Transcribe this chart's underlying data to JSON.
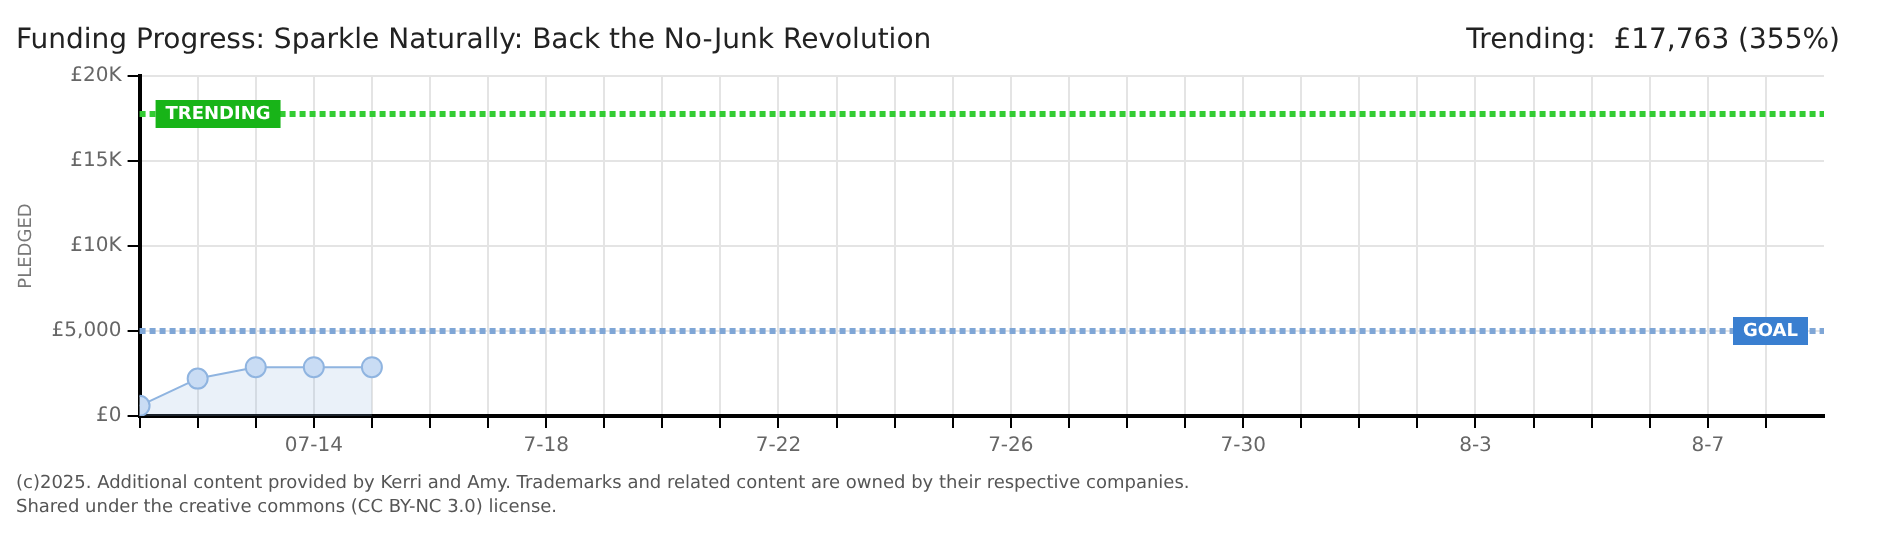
{
  "chart_data": {
    "type": "area",
    "title": "Funding Progress: Sparkle Naturally: Back the No-Junk Revolution",
    "subtitle": "Trending:  £17,763 (355%)",
    "ylabel": "PLEDGED",
    "x": [
      "--07-11",
      "--07-12",
      "--07-13",
      "--07-14",
      "--07-15"
    ],
    "series": [
      {
        "color": "#8fb4e0",
        "values": [
          600,
          2200,
          2870,
          2870,
          2870
        ]
      }
    ],
    "xlim": [
      "--07-11",
      "--08-09"
    ],
    "xticks": [
      {
        "value": "--07-11",
        "label": null
      },
      {
        "value": "--07-12",
        "label": null
      },
      {
        "value": "--07-13",
        "label": null
      },
      {
        "value": "--07-14",
        "label": "07-14"
      },
      {
        "value": "--07-15",
        "label": null
      },
      {
        "value": "--07-16",
        "label": null
      },
      {
        "value": "--07-17",
        "label": null
      },
      {
        "value": "--07-18",
        "label": "7-18"
      },
      {
        "value": "--07-19",
        "label": null
      },
      {
        "value": "--07-20",
        "label": null
      },
      {
        "value": "--07-21",
        "label": null
      },
      {
        "value": "--07-22",
        "label": "7-22"
      },
      {
        "value": "--07-23",
        "label": null
      },
      {
        "value": "--07-24",
        "label": null
      },
      {
        "value": "--07-25",
        "label": null
      },
      {
        "value": "--07-26",
        "label": "7-26"
      },
      {
        "value": "--07-27",
        "label": null
      },
      {
        "value": "--07-28",
        "label": null
      },
      {
        "value": "--07-29",
        "label": null
      },
      {
        "value": "--07-30",
        "label": "7-30"
      },
      {
        "value": "--07-31",
        "label": null
      },
      {
        "value": "--08-01",
        "label": null
      },
      {
        "value": "--08-02",
        "label": null
      },
      {
        "value": "--08-03",
        "label": "8-3"
      },
      {
        "value": "--08-04",
        "label": null
      },
      {
        "value": "--08-05",
        "label": null
      },
      {
        "value": "--08-06",
        "label": null
      },
      {
        "value": "--08-07",
        "label": "8-7"
      },
      {
        "value": "--08-08",
        "label": null
      }
    ],
    "ylim": [
      0,
      20000
    ],
    "yticks": [
      {
        "value": 0,
        "label": "£0"
      },
      {
        "value": 5000,
        "label": "£5,000"
      },
      {
        "value": 10000,
        "label": "£10K"
      },
      {
        "value": 15000,
        "label": "£15K"
      },
      {
        "value": 20000,
        "label": "£20K"
      }
    ],
    "ref_lines": [
      {
        "axis": "y",
        "value": 17763,
        "label": "TRENDING",
        "color": "#33cc33",
        "line_style": "dotted"
      },
      {
        "axis": "y",
        "value": 5000,
        "label": "GOAL",
        "color": "#7fa6d6",
        "line_style": "dotted"
      }
    ],
    "grid": true,
    "marker": "circle",
    "legend": false,
    "annotations": [
      "(c)2025. Additional content provided by Kerri and Amy. Trademarks and related content are owned by their respective companies.",
      "Shared under the creative commons (CC BY-NC 3.0) license."
    ]
  }
}
